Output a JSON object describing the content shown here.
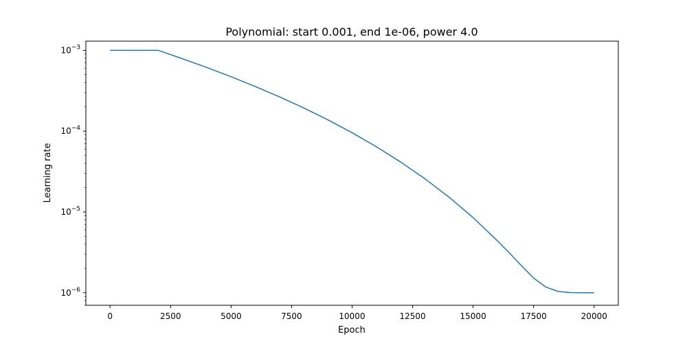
{
  "chart_data": {
    "type": "line",
    "title": "Polynomial: start 0.001, end 1e-06, power 4.0",
    "xlabel": "Epoch",
    "ylabel": "Learning rate",
    "xlim": [
      -1000,
      21000
    ],
    "ylim": [
      7e-07,
      0.0013
    ],
    "yscale": "log",
    "grid": false,
    "x_ticks": [
      {
        "value": 0,
        "label": "0"
      },
      {
        "value": 2500,
        "label": "2500"
      },
      {
        "value": 5000,
        "label": "5000"
      },
      {
        "value": 7500,
        "label": "7500"
      },
      {
        "value": 10000,
        "label": "10000"
      },
      {
        "value": 12500,
        "label": "12500"
      },
      {
        "value": 15000,
        "label": "15000"
      },
      {
        "value": 17500,
        "label": "17500"
      },
      {
        "value": 20000,
        "label": "20000"
      }
    ],
    "y_ticks": [
      {
        "value": 1e-06,
        "base": "10",
        "exp": "−6"
      },
      {
        "value": 1e-05,
        "base": "10",
        "exp": "−5"
      },
      {
        "value": 0.0001,
        "base": "10",
        "exp": "−4"
      },
      {
        "value": 0.001,
        "base": "10",
        "exp": "−3"
      }
    ],
    "series": [
      {
        "color": "#1f77b4",
        "x": [
          0,
          2000,
          3000,
          4000,
          5000,
          6000,
          7000,
          8000,
          9000,
          10000,
          11000,
          12000,
          13000,
          14000,
          15000,
          16000,
          16500,
          17000,
          17500,
          18000,
          18500,
          19000,
          19500,
          20000
        ],
        "y": [
          0.001,
          0.001,
          0.000786,
          0.000613,
          0.000472,
          0.000357,
          0.000266,
          0.000194,
          0.000138,
          9.57e-05,
          6.42e-05,
          4.16e-05,
          2.59e-05,
          1.53e-05,
          8.51e-06,
          4.41e-06,
          3.11e-06,
          2.16e-06,
          1.52e-06,
          1.18e-06,
          1.04e-06,
          1.004e-06,
          1e-06,
          1e-06
        ]
      }
    ]
  }
}
